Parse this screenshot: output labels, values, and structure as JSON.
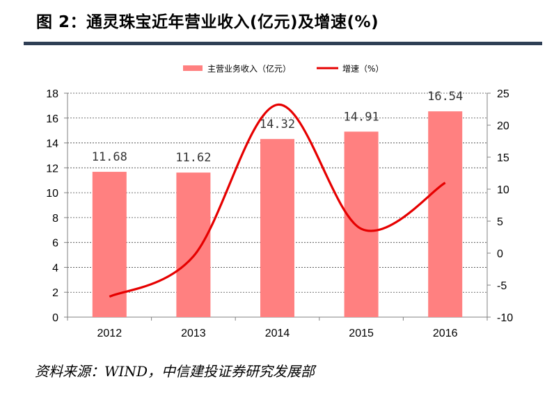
{
  "figure": {
    "title": "图 2：通灵珠宝近年营业收入(亿元)及增速(%)",
    "source": "资料来源：WIND，中信建投证券研究发展部"
  },
  "chart_data": {
    "type": "bar",
    "categories": [
      "2012",
      "2013",
      "2014",
      "2015",
      "2016"
    ],
    "series": [
      {
        "name": "主营业务收入（亿元）",
        "type": "bar",
        "axis": "left",
        "color": "#ff8080",
        "values": [
          11.68,
          11.62,
          14.32,
          14.91,
          16.54
        ],
        "labels": [
          "11.68",
          "11.62",
          "14.32",
          "14.91",
          "16.54"
        ]
      },
      {
        "name": "增速（%）",
        "type": "line",
        "axis": "right",
        "color": "#e60000",
        "values": [
          -6.8,
          -0.5,
          23.2,
          3.8,
          11.0
        ]
      }
    ],
    "y_left": {
      "min": 0,
      "max": 18,
      "step": 2,
      "ticks": [
        "0",
        "2",
        "4",
        "6",
        "8",
        "10",
        "12",
        "14",
        "16",
        "18"
      ]
    },
    "y_right": {
      "min": -10,
      "max": 25,
      "step": 5,
      "ticks": [
        "-10",
        "-5",
        "0",
        "5",
        "10",
        "15",
        "20",
        "25"
      ]
    },
    "grid": true,
    "legend_position": "top-center"
  }
}
